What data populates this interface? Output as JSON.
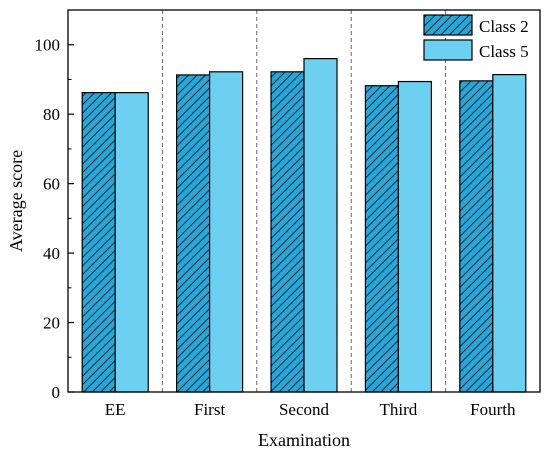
{
  "chart_data": {
    "type": "bar",
    "title": "",
    "xlabel": "Examination",
    "ylabel": "Average score",
    "categories": [
      "EE",
      "First",
      "Second",
      "Third",
      "Fourth"
    ],
    "series": [
      {
        "name": "Class 2",
        "values": [
          86.2,
          91.3,
          92.2,
          88.2,
          89.6
        ],
        "color": "#2aa5d6",
        "pattern": "diagonal-hatch"
      },
      {
        "name": "Class 5",
        "values": [
          86.2,
          92.2,
          96.0,
          89.4,
          91.4
        ],
        "color": "#6dd0f0",
        "pattern": "solid"
      }
    ],
    "ylim": [
      0,
      110
    ],
    "yticks": [
      0,
      20,
      40,
      60,
      80,
      100
    ],
    "grid": "dashed vertical separators between categories",
    "legend": {
      "position": "top-right",
      "entries": [
        "Class 2",
        "Class 5"
      ]
    }
  }
}
